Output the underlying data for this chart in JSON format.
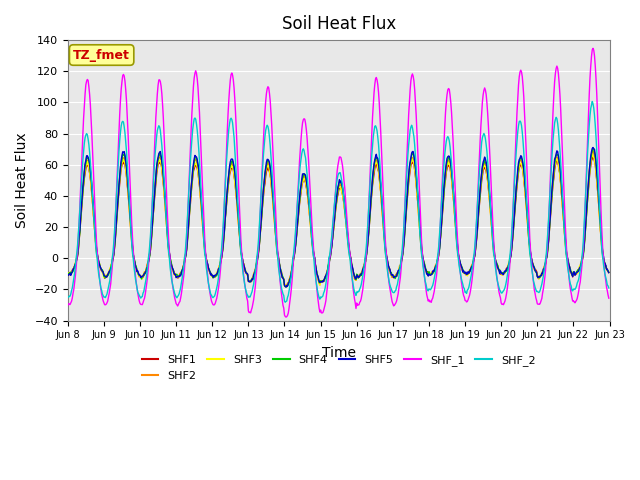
{
  "title": "Soil Heat Flux",
  "xlabel": "Time",
  "ylabel": "Soil Heat Flux",
  "ylim": [
    -40,
    140
  ],
  "xlim_days": [
    0,
    15
  ],
  "series": [
    "SHF1",
    "SHF2",
    "SHF3",
    "SHF4",
    "SHF5",
    "SHF_1",
    "SHF_2"
  ],
  "colors": [
    "#cc0000",
    "#ff8800",
    "#ffff00",
    "#00cc00",
    "#0000cc",
    "#ff00ff",
    "#00cccc"
  ],
  "xtick_labels": [
    "Jun 8",
    "Jun 9",
    "Jun 10",
    "Jun 11",
    "Jun 12",
    "Jun 13",
    "Jun 14",
    "Jun 15",
    "Jun 16",
    "Jun 17",
    "Jun 18",
    "Jun 19",
    "Jun 20",
    "Jun 21",
    "Jun 22",
    "Jun 23"
  ],
  "annotation_text": "TZ_fmet",
  "annotation_color": "#cc0000",
  "annotation_bg": "#ffff99",
  "annotation_border": "#999900",
  "background_plot": "#e8e8e8",
  "n_days": 15,
  "hours_per_day": 24,
  "dt_hours": 0.5
}
